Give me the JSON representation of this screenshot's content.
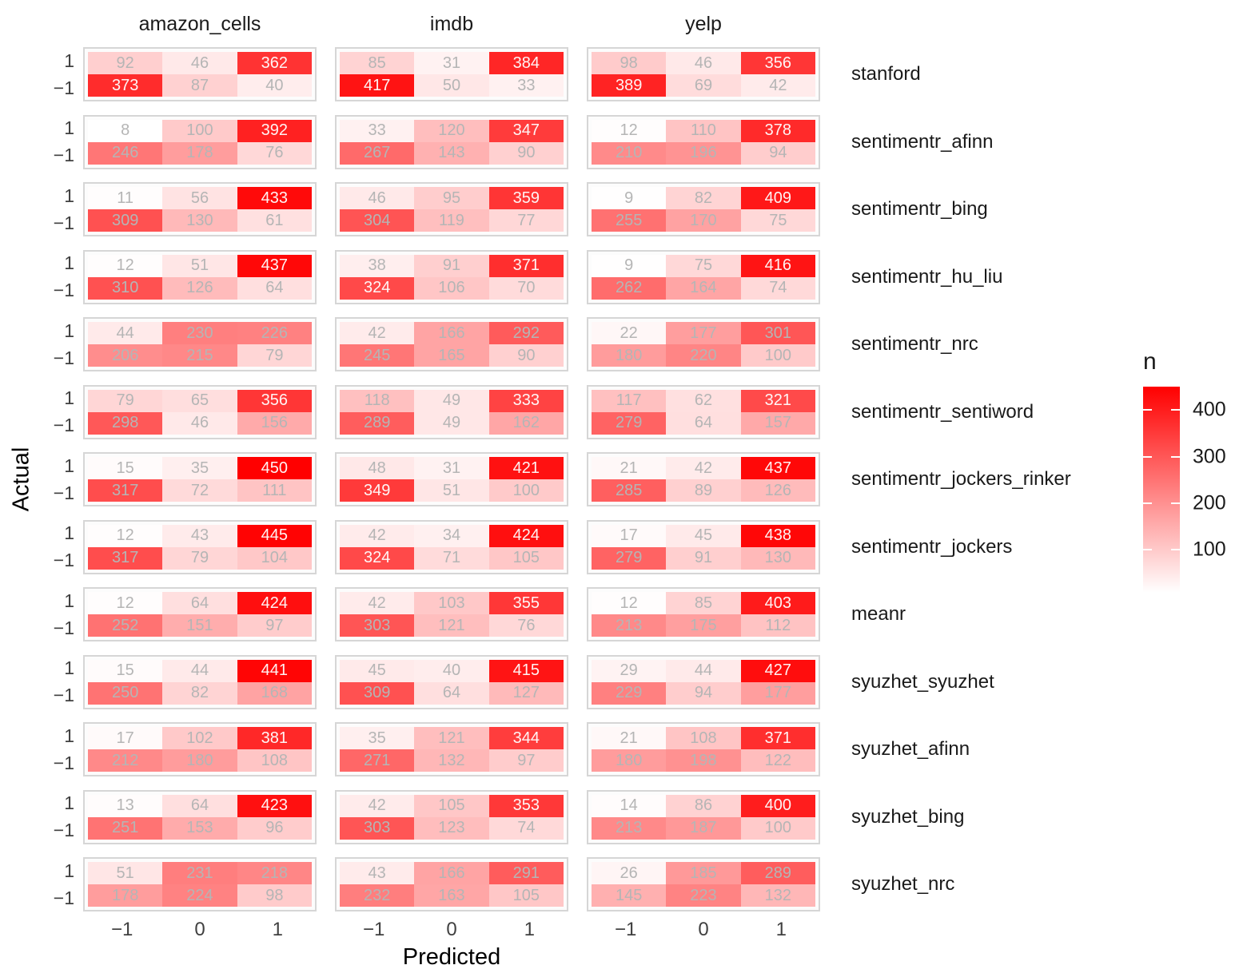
{
  "chart_data": {
    "type": "heatmap",
    "title": "",
    "xlabel": "Predicted",
    "ylabel": "Actual",
    "facet_columns": [
      "amazon_cells",
      "imdb",
      "yelp"
    ],
    "facet_rows": [
      "stanford",
      "sentimentr_afinn",
      "sentimentr_bing",
      "sentimentr_hu_liu",
      "sentimentr_nrc",
      "sentimentr_sentiword",
      "sentimentr_jockers_rinker",
      "sentimentr_jockers",
      "meanr",
      "syuzhet_syuzhet",
      "syuzhet_afinn",
      "syuzhet_bing",
      "syuzhet_nrc"
    ],
    "predicted_labels": [
      "−1",
      "0",
      "1"
    ],
    "actual_labels": [
      "1",
      "−1"
    ],
    "legend": {
      "title": "n",
      "ticks": [
        400,
        300,
        200,
        100
      ],
      "low_color": "#FFFFFF",
      "high_color": "#FF0000",
      "domain": [
        8,
        450
      ]
    },
    "values": {
      "stanford": {
        "amazon_cells": [
          [
            92,
            46,
            362
          ],
          [
            373,
            87,
            40
          ]
        ],
        "imdb": [
          [
            85,
            31,
            384
          ],
          [
            417,
            50,
            33
          ]
        ],
        "yelp": [
          [
            98,
            46,
            356
          ],
          [
            389,
            69,
            42
          ]
        ]
      },
      "sentimentr_afinn": {
        "amazon_cells": [
          [
            8,
            100,
            392
          ],
          [
            246,
            178,
            76
          ]
        ],
        "imdb": [
          [
            33,
            120,
            347
          ],
          [
            267,
            143,
            90
          ]
        ],
        "yelp": [
          [
            12,
            110,
            378
          ],
          [
            210,
            196,
            94
          ]
        ]
      },
      "sentimentr_bing": {
        "amazon_cells": [
          [
            11,
            56,
            433
          ],
          [
            309,
            130,
            61
          ]
        ],
        "imdb": [
          [
            46,
            95,
            359
          ],
          [
            304,
            119,
            77
          ]
        ],
        "yelp": [
          [
            9,
            82,
            409
          ],
          [
            255,
            170,
            75
          ]
        ]
      },
      "sentimentr_hu_liu": {
        "amazon_cells": [
          [
            12,
            51,
            437
          ],
          [
            310,
            126,
            64
          ]
        ],
        "imdb": [
          [
            38,
            91,
            371
          ],
          [
            324,
            106,
            70
          ]
        ],
        "yelp": [
          [
            9,
            75,
            416
          ],
          [
            262,
            164,
            74
          ]
        ]
      },
      "sentimentr_nrc": {
        "amazon_cells": [
          [
            44,
            230,
            226
          ],
          [
            206,
            215,
            79
          ]
        ],
        "imdb": [
          [
            42,
            166,
            292
          ],
          [
            245,
            165,
            90
          ]
        ],
        "yelp": [
          [
            22,
            177,
            301
          ],
          [
            180,
            220,
            100
          ]
        ]
      },
      "sentimentr_sentiword": {
        "amazon_cells": [
          [
            79,
            65,
            356
          ],
          [
            298,
            46,
            156
          ]
        ],
        "imdb": [
          [
            118,
            49,
            333
          ],
          [
            289,
            49,
            162
          ]
        ],
        "yelp": [
          [
            117,
            62,
            321
          ],
          [
            279,
            64,
            157
          ]
        ]
      },
      "sentimentr_jockers_rinker": {
        "amazon_cells": [
          [
            15,
            35,
            450
          ],
          [
            317,
            72,
            111
          ]
        ],
        "imdb": [
          [
            48,
            31,
            421
          ],
          [
            349,
            51,
            100
          ]
        ],
        "yelp": [
          [
            21,
            42,
            437
          ],
          [
            285,
            89,
            126
          ]
        ]
      },
      "sentimentr_jockers": {
        "amazon_cells": [
          [
            12,
            43,
            445
          ],
          [
            317,
            79,
            104
          ]
        ],
        "imdb": [
          [
            42,
            34,
            424
          ],
          [
            324,
            71,
            105
          ]
        ],
        "yelp": [
          [
            17,
            45,
            438
          ],
          [
            279,
            91,
            130
          ]
        ]
      },
      "meanr": {
        "amazon_cells": [
          [
            12,
            64,
            424
          ],
          [
            252,
            151,
            97
          ]
        ],
        "imdb": [
          [
            42,
            103,
            355
          ],
          [
            303,
            121,
            76
          ]
        ],
        "yelp": [
          [
            12,
            85,
            403
          ],
          [
            213,
            175,
            112
          ]
        ]
      },
      "syuzhet_syuzhet": {
        "amazon_cells": [
          [
            15,
            44,
            441
          ],
          [
            250,
            82,
            168
          ]
        ],
        "imdb": [
          [
            45,
            40,
            415
          ],
          [
            309,
            64,
            127
          ]
        ],
        "yelp": [
          [
            29,
            44,
            427
          ],
          [
            229,
            94,
            177
          ]
        ]
      },
      "syuzhet_afinn": {
        "amazon_cells": [
          [
            17,
            102,
            381
          ],
          [
            212,
            180,
            108
          ]
        ],
        "imdb": [
          [
            35,
            121,
            344
          ],
          [
            271,
            132,
            97
          ]
        ],
        "yelp": [
          [
            21,
            108,
            371
          ],
          [
            180,
            198,
            122
          ]
        ]
      },
      "syuzhet_bing": {
        "amazon_cells": [
          [
            13,
            64,
            423
          ],
          [
            251,
            153,
            96
          ]
        ],
        "imdb": [
          [
            42,
            105,
            353
          ],
          [
            303,
            123,
            74
          ]
        ],
        "yelp": [
          [
            14,
            86,
            400
          ],
          [
            213,
            187,
            100
          ]
        ]
      },
      "syuzhet_nrc": {
        "amazon_cells": [
          [
            51,
            231,
            218
          ],
          [
            178,
            224,
            98
          ]
        ],
        "imdb": [
          [
            43,
            166,
            291
          ],
          [
            232,
            163,
            105
          ]
        ],
        "yelp": [
          [
            26,
            185,
            289
          ],
          [
            145,
            223,
            132
          ]
        ]
      }
    }
  }
}
